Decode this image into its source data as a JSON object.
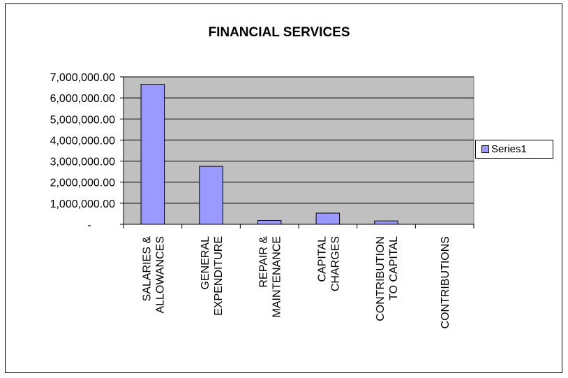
{
  "chart_data": {
    "type": "bar",
    "title": "FINANCIAL SERVICES",
    "categories": [
      [
        "SALARIES &",
        "ALLOWANCES"
      ],
      [
        "GENERAL",
        "EXPENDITURE"
      ],
      [
        "REPAIR &",
        "MAINTENANCE"
      ],
      [
        "CAPITAL",
        "CHARGES"
      ],
      [
        "CONTRIBUTION",
        "TO CAPITAL"
      ],
      [
        "CONTRIBUTIONS"
      ]
    ],
    "series": [
      {
        "name": "Series1",
        "values": [
          6650000,
          2750000,
          180000,
          530000,
          160000,
          0
        ]
      }
    ],
    "ylim": [
      0,
      7000000
    ],
    "y_ticks": [
      {
        "value": 0,
        "label": "-"
      },
      {
        "value": 1000000,
        "label": "1,000,000.00"
      },
      {
        "value": 2000000,
        "label": "2,000,000.00"
      },
      {
        "value": 3000000,
        "label": "3,000,000.00"
      },
      {
        "value": 4000000,
        "label": "4,000,000.00"
      },
      {
        "value": 5000000,
        "label": "5,000,000.00"
      },
      {
        "value": 6000000,
        "label": "6,000,000.00"
      },
      {
        "value": 7000000,
        "label": "7,000,000.00"
      }
    ],
    "grid": true,
    "legend_position": "right",
    "colors": {
      "bar": "#9999ff",
      "plot_background": "#c0c0c0",
      "gridline": "#000000"
    }
  }
}
